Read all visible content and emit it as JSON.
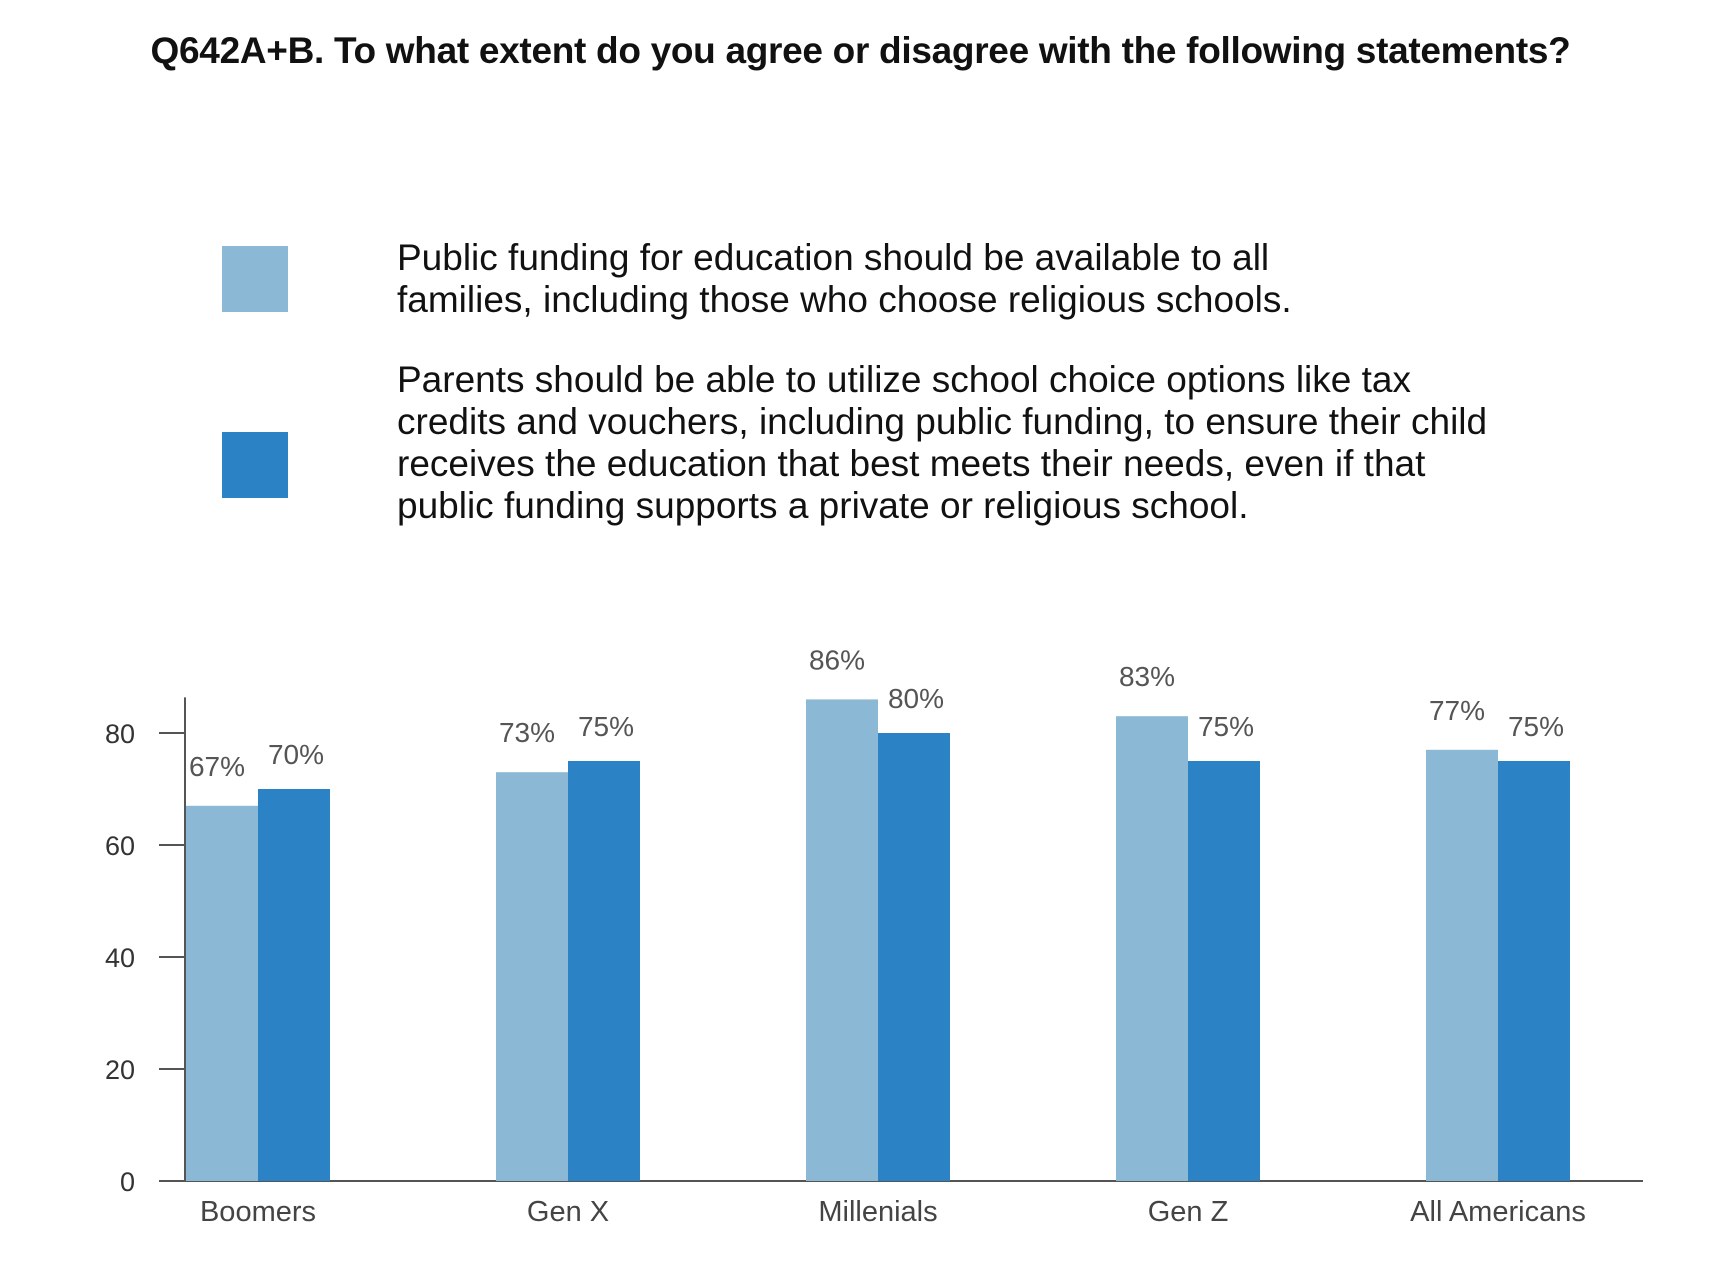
{
  "chart_data": {
    "type": "bar",
    "title": "Q642A+B. To what extent do you agree or disagree with the following statements?",
    "categories": [
      "Boomers",
      "Gen X",
      "Millenials",
      "Gen Z",
      "All Americans"
    ],
    "series": [
      {
        "name": "Public funding for education should be available to all families, including those who choose religious schools.",
        "values": [
          67,
          73,
          86,
          83,
          77
        ],
        "labels": [
          "67%",
          "73%",
          "86%",
          "83%",
          "77%"
        ],
        "color": "#8bb8d4"
      },
      {
        "name": "Parents should be able to utilize school choice options like tax credits and vouchers, including public funding, to ensure their child receives the education that best meets their needs, even if that public funding supports a private or religious school.",
        "values": [
          70,
          75,
          80,
          75,
          75
        ],
        "labels": [
          "70%",
          "75%",
          "80%",
          "75%",
          "75%"
        ],
        "color": "#2b82c4"
      }
    ],
    "yticks": [
      0,
      20,
      40,
      60,
      80
    ],
    "ylim": [
      0,
      86
    ],
    "xlabel": "",
    "ylabel": "",
    "legend": "top",
    "grid": false
  }
}
